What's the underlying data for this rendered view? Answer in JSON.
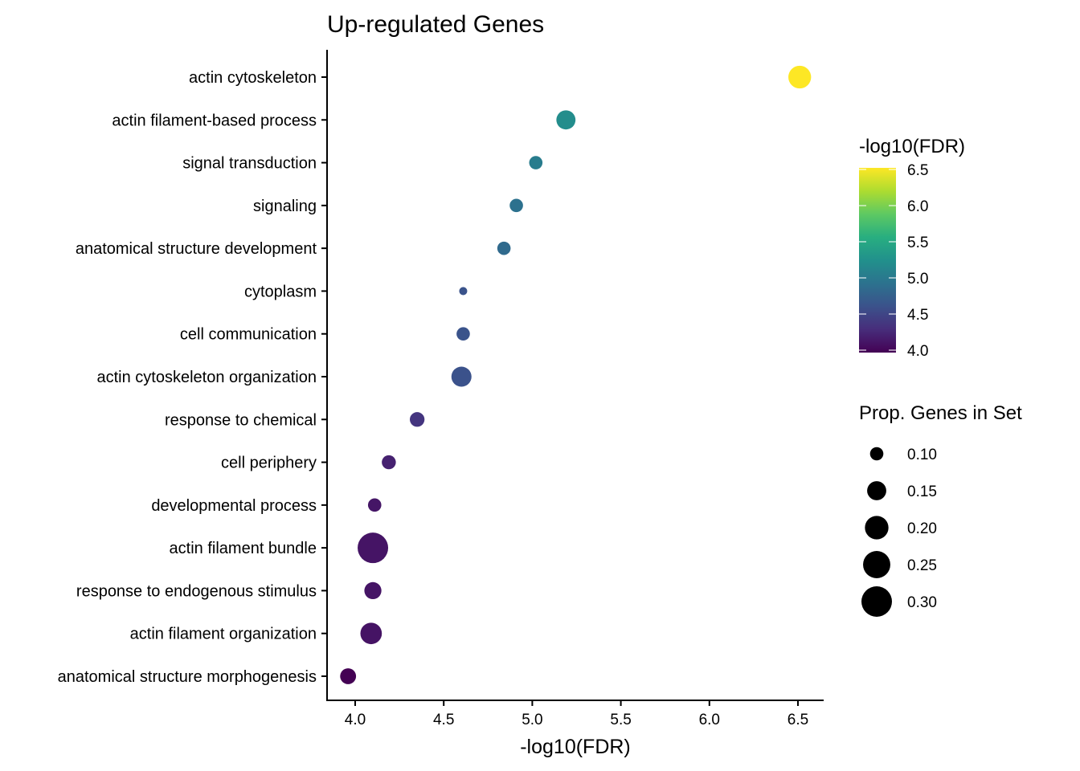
{
  "chart_data": {
    "type": "scatter",
    "title": "Up-regulated Genes",
    "xlabel": "-log10(FDR)",
    "ylabel": "",
    "xlim": [
      3.84,
      6.66
    ],
    "xticks": [
      "4.0",
      "4.5",
      "5.0",
      "5.5",
      "6.0",
      "6.5"
    ],
    "grid": false,
    "categories": [
      "actin cytoskeleton",
      "actin filament-based process",
      "signal transduction",
      "signaling",
      "anatomical structure development",
      "cytoplasm",
      "cell communication",
      "actin cytoskeleton organization",
      "response to chemical",
      "cell periphery",
      "developmental process",
      "actin filament bundle",
      "response to endogenous stimulus",
      "actin filament organization",
      "anatomical structure morphogenesis"
    ],
    "x": [
      6.51,
      5.19,
      5.02,
      4.91,
      4.84,
      4.61,
      4.61,
      4.6,
      4.35,
      4.19,
      4.11,
      4.1,
      4.1,
      4.09,
      3.96
    ],
    "color_values": [
      6.51,
      5.19,
      5.02,
      4.91,
      4.84,
      4.61,
      4.61,
      4.6,
      4.35,
      4.19,
      4.11,
      4.1,
      4.1,
      4.09,
      3.96
    ],
    "size_values": [
      0.19,
      0.15,
      0.1,
      0.1,
      0.1,
      0.07,
      0.1,
      0.16,
      0.11,
      0.105,
      0.1,
      0.3,
      0.13,
      0.175,
      0.12
    ],
    "color_legend": {
      "title": "-log10(FDR)",
      "labels": [
        "6.5",
        "6.0",
        "5.5",
        "5.0",
        "4.5",
        "4.0"
      ],
      "values": [
        6.5,
        6.0,
        5.5,
        5.0,
        4.5,
        4.0
      ],
      "range": [
        3.96,
        6.51
      ],
      "palette": "viridis",
      "position": "right"
    },
    "size_legend": {
      "title": "Prop. Genes in Set",
      "labels": [
        "0.10",
        "0.15",
        "0.20",
        "0.25",
        "0.30"
      ],
      "values": [
        0.1,
        0.15,
        0.2,
        0.25,
        0.3
      ],
      "position": "right"
    }
  }
}
